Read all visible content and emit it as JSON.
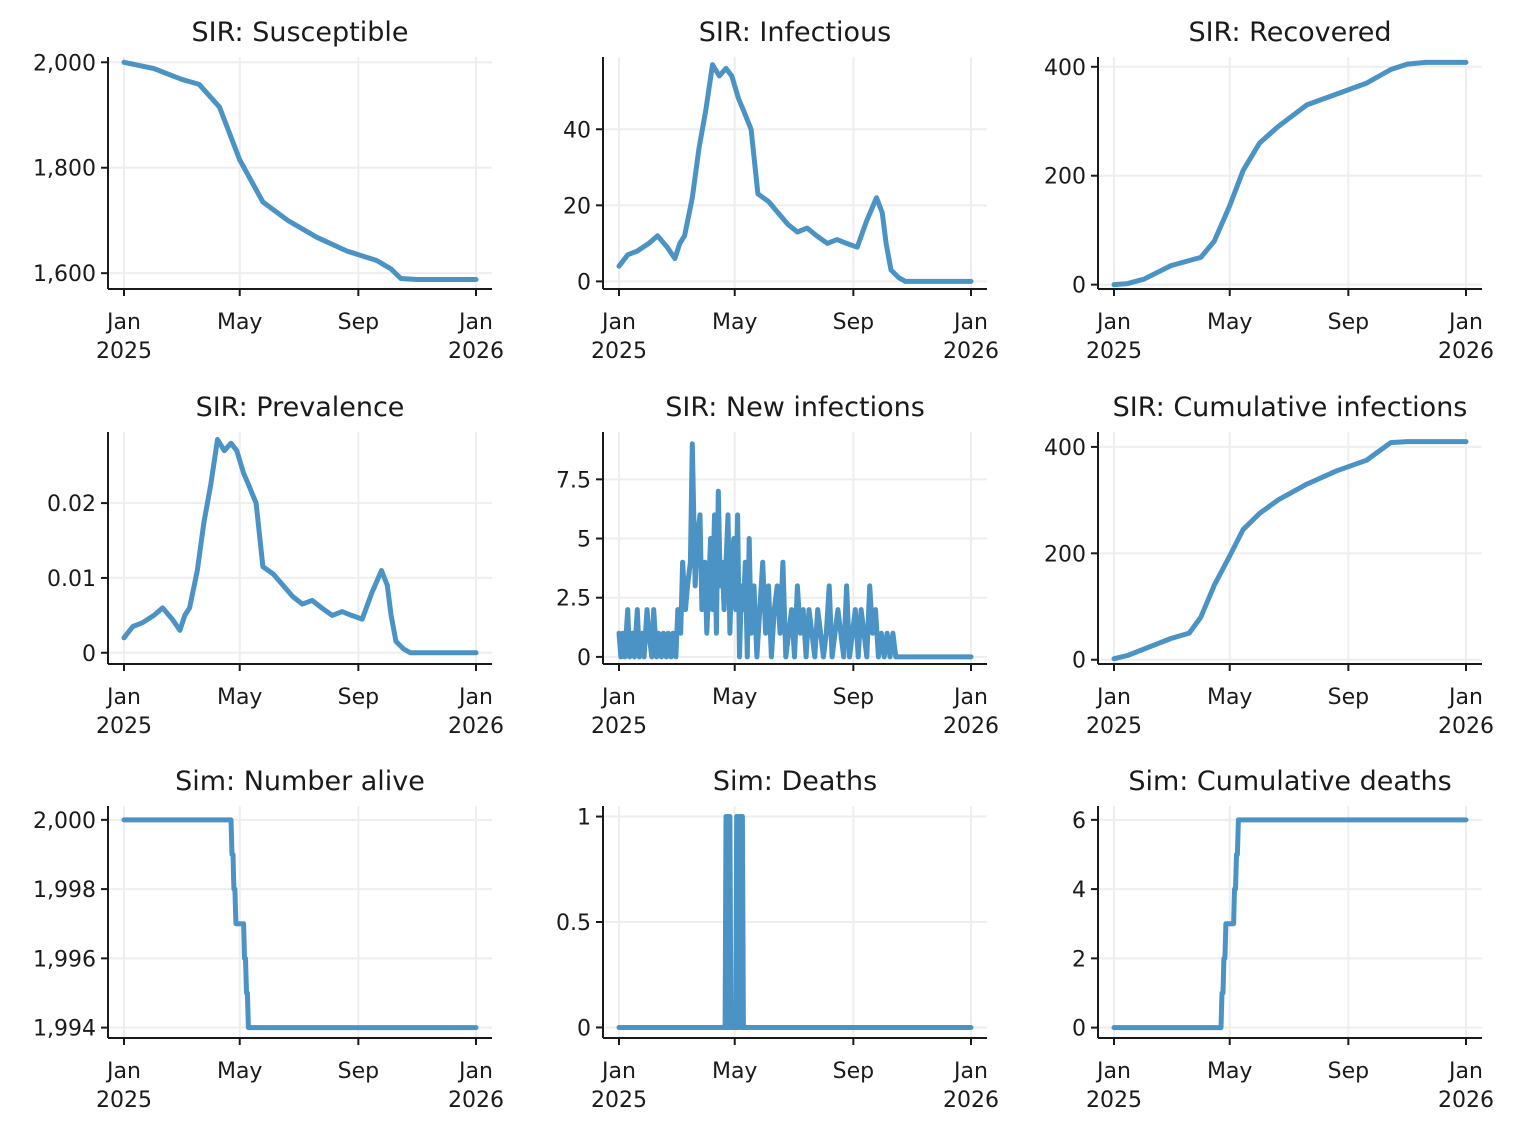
{
  "colors": {
    "series": "#4a93c4"
  },
  "chart_data": [
    {
      "type": "line",
      "title": "SIR: Susceptible",
      "ylim": [
        1570,
        2010
      ],
      "yticks": [
        1600,
        1800,
        2000
      ],
      "yticklabels": [
        "1,600",
        "1,800",
        "2,000"
      ],
      "xticks": [
        "2025-01-01",
        "2025-05-01",
        "2025-09-01",
        "2026-01-01"
      ],
      "xticklabels": [
        [
          "Jan",
          "2025"
        ],
        [
          "May",
          ""
        ],
        [
          "Sep",
          ""
        ],
        [
          "Jan",
          "2026"
        ]
      ],
      "grid": true,
      "series": [
        {
          "x": [
            "2025-01-01",
            "2025-02-01",
            "2025-03-01",
            "2025-03-20",
            "2025-04-10",
            "2025-05-01",
            "2025-05-25",
            "2025-06-20",
            "2025-07-20",
            "2025-08-20",
            "2025-09-20",
            "2025-10-05",
            "2025-10-15",
            "2025-11-01",
            "2026-01-01"
          ],
          "y": [
            2000,
            1988,
            1968,
            1958,
            1915,
            1815,
            1735,
            1700,
            1668,
            1642,
            1624,
            1608,
            1590,
            1588,
            1588
          ]
        }
      ]
    },
    {
      "type": "line",
      "title": "SIR: Infectious",
      "ylim": [
        -2,
        59
      ],
      "yticks": [
        0,
        20,
        40
      ],
      "yticklabels": [
        "0",
        "20",
        "40"
      ],
      "xticks": [
        "2025-01-01",
        "2025-05-01",
        "2025-09-01",
        "2026-01-01"
      ],
      "xticklabels": [
        [
          "Jan",
          "2025"
        ],
        [
          "May",
          ""
        ],
        [
          "Sep",
          ""
        ],
        [
          "Jan",
          "2026"
        ]
      ],
      "grid": true,
      "series": [
        {
          "x": [
            "2025-01-01",
            "2025-01-10",
            "2025-01-20",
            "2025-02-01",
            "2025-02-10",
            "2025-02-20",
            "2025-02-28",
            "2025-03-05",
            "2025-03-10",
            "2025-03-18",
            "2025-03-25",
            "2025-04-01",
            "2025-04-08",
            "2025-04-15",
            "2025-04-22",
            "2025-04-28",
            "2025-05-05",
            "2025-05-10",
            "2025-05-18",
            "2025-05-25",
            "2025-06-05",
            "2025-06-15",
            "2025-06-25",
            "2025-07-05",
            "2025-07-15",
            "2025-07-25",
            "2025-08-05",
            "2025-08-15",
            "2025-08-25",
            "2025-09-05",
            "2025-09-15",
            "2025-09-25",
            "2025-10-01",
            "2025-10-05",
            "2025-10-10",
            "2025-10-18",
            "2025-10-25",
            "2025-11-01",
            "2026-01-01"
          ],
          "y": [
            4,
            7,
            8,
            10,
            12,
            9,
            6,
            10,
            12,
            22,
            35,
            45,
            57,
            54,
            56,
            54,
            48,
            45,
            40,
            23,
            21,
            18,
            15,
            13,
            14,
            12,
            10,
            11,
            10,
            9,
            16,
            22,
            18,
            10,
            3,
            1,
            0,
            0,
            0
          ]
        }
      ]
    },
    {
      "type": "line",
      "title": "SIR: Recovered",
      "ylim": [
        -8,
        418
      ],
      "yticks": [
        0,
        200,
        400
      ],
      "yticklabels": [
        "0",
        "200",
        "400"
      ],
      "xticks": [
        "2025-01-01",
        "2025-05-01",
        "2025-09-01",
        "2026-01-01"
      ],
      "xticklabels": [
        [
          "Jan",
          "2025"
        ],
        [
          "May",
          ""
        ],
        [
          "Sep",
          ""
        ],
        [
          "Jan",
          "2026"
        ]
      ],
      "grid": true,
      "series": [
        {
          "x": [
            "2025-01-01",
            "2025-01-15",
            "2025-02-01",
            "2025-03-01",
            "2025-04-01",
            "2025-04-15",
            "2025-05-01",
            "2025-05-15",
            "2025-06-01",
            "2025-06-20",
            "2025-07-20",
            "2025-08-20",
            "2025-09-20",
            "2025-10-15",
            "2025-11-01",
            "2025-11-20",
            "2026-01-01"
          ],
          "y": [
            0,
            2,
            10,
            35,
            50,
            80,
            145,
            210,
            260,
            290,
            330,
            350,
            370,
            395,
            405,
            408,
            408
          ]
        }
      ]
    },
    {
      "type": "line",
      "title": "SIR: Prevalence",
      "ylim": [
        -0.0015,
        0.0295
      ],
      "yticks": [
        0,
        0.01,
        0.02
      ],
      "yticklabels": [
        "0",
        "0.01",
        "0.02"
      ],
      "xticks": [
        "2025-01-01",
        "2025-05-01",
        "2025-09-01",
        "2026-01-01"
      ],
      "xticklabels": [
        [
          "Jan",
          "2025"
        ],
        [
          "May",
          ""
        ],
        [
          "Sep",
          ""
        ],
        [
          "Jan",
          "2026"
        ]
      ],
      "grid": true,
      "series": [
        {
          "x": [
            "2025-01-01",
            "2025-01-10",
            "2025-01-20",
            "2025-02-01",
            "2025-02-10",
            "2025-02-20",
            "2025-02-28",
            "2025-03-05",
            "2025-03-10",
            "2025-03-18",
            "2025-03-25",
            "2025-04-01",
            "2025-04-08",
            "2025-04-15",
            "2025-04-22",
            "2025-04-28",
            "2025-05-05",
            "2025-05-10",
            "2025-05-18",
            "2025-05-25",
            "2025-06-05",
            "2025-06-15",
            "2025-06-25",
            "2025-07-05",
            "2025-07-15",
            "2025-07-25",
            "2025-08-05",
            "2025-08-15",
            "2025-08-25",
            "2025-09-05",
            "2025-09-15",
            "2025-09-25",
            "2025-10-01",
            "2025-10-05",
            "2025-10-10",
            "2025-10-18",
            "2025-10-25",
            "2025-11-01",
            "2026-01-01"
          ],
          "y": [
            0.002,
            0.0035,
            0.004,
            0.005,
            0.006,
            0.0045,
            0.003,
            0.005,
            0.006,
            0.011,
            0.0175,
            0.0225,
            0.0285,
            0.027,
            0.028,
            0.027,
            0.024,
            0.0225,
            0.02,
            0.0115,
            0.0105,
            0.009,
            0.0075,
            0.0065,
            0.007,
            0.006,
            0.005,
            0.0055,
            0.005,
            0.0045,
            0.008,
            0.011,
            0.009,
            0.005,
            0.0015,
            0.0005,
            0,
            0,
            0
          ]
        }
      ]
    },
    {
      "type": "line",
      "title": "SIR: New infections",
      "ylim": [
        -0.3,
        9.5
      ],
      "yticks": [
        0,
        2.5,
        5,
        7.5
      ],
      "yticklabels": [
        "0",
        "2.5",
        "5",
        "7.5"
      ],
      "xticks": [
        "2025-01-01",
        "2025-05-01",
        "2025-09-01",
        "2026-01-01"
      ],
      "xticklabels": [
        [
          "Jan",
          "2025"
        ],
        [
          "May",
          ""
        ],
        [
          "Sep",
          ""
        ],
        [
          "Jan",
          "2026"
        ]
      ],
      "grid": true,
      "series": [
        {
          "x": [
            "2025-01-01",
            "2025-01-03",
            "2025-01-05",
            "2025-01-07",
            "2025-01-10",
            "2025-01-12",
            "2025-01-15",
            "2025-01-17",
            "2025-01-20",
            "2025-01-22",
            "2025-01-25",
            "2025-01-27",
            "2025-01-30",
            "2025-02-01",
            "2025-02-04",
            "2025-02-06",
            "2025-02-09",
            "2025-02-11",
            "2025-02-14",
            "2025-02-16",
            "2025-02-19",
            "2025-02-21",
            "2025-02-24",
            "2025-02-26",
            "2025-03-01",
            "2025-03-03",
            "2025-03-06",
            "2025-03-08",
            "2025-03-11",
            "2025-03-13",
            "2025-03-16",
            "2025-03-18",
            "2025-03-21",
            "2025-03-23",
            "2025-03-26",
            "2025-03-28",
            "2025-03-31",
            "2025-04-02",
            "2025-04-04",
            "2025-04-06",
            "2025-04-08",
            "2025-04-10",
            "2025-04-12",
            "2025-04-14",
            "2025-04-16",
            "2025-04-18",
            "2025-04-20",
            "2025-04-22",
            "2025-04-24",
            "2025-04-26",
            "2025-04-28",
            "2025-04-30",
            "2025-05-02",
            "2025-05-04",
            "2025-05-06",
            "2025-05-08",
            "2025-05-10",
            "2025-05-12",
            "2025-05-14",
            "2025-05-16",
            "2025-05-18",
            "2025-05-21",
            "2025-05-24",
            "2025-05-27",
            "2025-05-30",
            "2025-06-02",
            "2025-06-05",
            "2025-06-08",
            "2025-06-11",
            "2025-06-14",
            "2025-06-17",
            "2025-06-20",
            "2025-06-23",
            "2025-06-26",
            "2025-06-29",
            "2025-07-02",
            "2025-07-05",
            "2025-07-08",
            "2025-07-11",
            "2025-07-14",
            "2025-07-17",
            "2025-07-20",
            "2025-07-23",
            "2025-07-26",
            "2025-07-29",
            "2025-08-01",
            "2025-08-04",
            "2025-08-07",
            "2025-08-10",
            "2025-08-13",
            "2025-08-16",
            "2025-08-19",
            "2025-08-22",
            "2025-08-25",
            "2025-08-28",
            "2025-08-31",
            "2025-09-03",
            "2025-09-06",
            "2025-09-09",
            "2025-09-12",
            "2025-09-15",
            "2025-09-18",
            "2025-09-21",
            "2025-09-24",
            "2025-09-27",
            "2025-09-30",
            "2025-10-03",
            "2025-10-06",
            "2025-10-09",
            "2025-10-12",
            "2025-10-15",
            "2025-10-18",
            "2025-10-21",
            "2026-01-01"
          ],
          "y": [
            1,
            0,
            1,
            0,
            2,
            0,
            1,
            0,
            2,
            0,
            1,
            0,
            2,
            1,
            0,
            2,
            0,
            1,
            0,
            1,
            0,
            1,
            0,
            1,
            0,
            2,
            1,
            4,
            2,
            3,
            4,
            9,
            3,
            5,
            6,
            2,
            4,
            1,
            3,
            5,
            2,
            6,
            1,
            7,
            3,
            4,
            2,
            4,
            6,
            1,
            4,
            5,
            2,
            6,
            0,
            3,
            2,
            4,
            0,
            5,
            1,
            3,
            0,
            2,
            4,
            1,
            3,
            0,
            2,
            3,
            1,
            4,
            0,
            1,
            2,
            0,
            3,
            1,
            2,
            0,
            2,
            1,
            0,
            2,
            1,
            0,
            1,
            3,
            0,
            1,
            2,
            1,
            0,
            3,
            0,
            1,
            2,
            0,
            2,
            1,
            0,
            3,
            1,
            2,
            0,
            1,
            0,
            1,
            0,
            1,
            0,
            0,
            0,
            0
          ]
        }
      ]
    },
    {
      "type": "line",
      "title": "SIR: Cumulative infections",
      "ylim": [
        -8,
        428
      ],
      "yticks": [
        0,
        200,
        400
      ],
      "yticklabels": [
        "0",
        "200",
        "400"
      ],
      "xticks": [
        "2025-01-01",
        "2025-05-01",
        "2025-09-01",
        "2026-01-01"
      ],
      "xticklabels": [
        [
          "Jan",
          "2025"
        ],
        [
          "May",
          ""
        ],
        [
          "Sep",
          ""
        ],
        [
          "Jan",
          "2026"
        ]
      ],
      "grid": true,
      "series": [
        {
          "x": [
            "2025-01-01",
            "2025-01-15",
            "2025-02-01",
            "2025-03-01",
            "2025-03-20",
            "2025-04-01",
            "2025-04-15",
            "2025-05-01",
            "2025-05-15",
            "2025-06-01",
            "2025-06-20",
            "2025-07-20",
            "2025-08-20",
            "2025-09-20",
            "2025-10-05",
            "2025-10-15",
            "2025-11-01",
            "2026-01-01"
          ],
          "y": [
            2,
            8,
            20,
            40,
            50,
            80,
            140,
            195,
            245,
            275,
            300,
            330,
            355,
            375,
            395,
            408,
            410,
            410
          ]
        }
      ]
    },
    {
      "type": "line",
      "title": "Sim: Number alive",
      "ylim": [
        1993.7,
        2000.4
      ],
      "yticks": [
        1994,
        1996,
        1998,
        2000
      ],
      "yticklabels": [
        "1,994",
        "1,996",
        "1,998",
        "2,000"
      ],
      "xticks": [
        "2025-01-01",
        "2025-05-01",
        "2025-09-01",
        "2026-01-01"
      ],
      "xticklabels": [
        [
          "Jan",
          "2025"
        ],
        [
          "May",
          ""
        ],
        [
          "Sep",
          ""
        ],
        [
          "Jan",
          "2026"
        ]
      ],
      "grid": true,
      "series": [
        {
          "x": [
            "2025-01-01",
            "2025-04-22",
            "2025-04-23",
            "2025-04-24",
            "2025-04-25",
            "2025-04-26",
            "2025-04-27",
            "2025-04-28",
            "2025-05-05",
            "2025-05-06",
            "2025-05-07",
            "2025-05-08",
            "2025-05-09",
            "2025-05-10",
            "2025-05-11",
            "2026-01-01"
          ],
          "y": [
            2000,
            2000,
            1999,
            1999,
            1998,
            1998,
            1997,
            1997,
            1997,
            1996,
            1996,
            1995,
            1995,
            1994,
            1994,
            1994
          ]
        }
      ]
    },
    {
      "type": "line",
      "title": "Sim: Deaths",
      "ylim": [
        -0.05,
        1.05
      ],
      "yticks": [
        0,
        0.5,
        1
      ],
      "yticklabels": [
        "0",
        "0.5",
        "1"
      ],
      "xticks": [
        "2025-01-01",
        "2025-05-01",
        "2025-09-01",
        "2026-01-01"
      ],
      "xticklabels": [
        [
          "Jan",
          "2025"
        ],
        [
          "May",
          ""
        ],
        [
          "Sep",
          ""
        ],
        [
          "Jan",
          "2026"
        ]
      ],
      "grid": true,
      "series": [
        {
          "x": [
            "2025-01-01",
            "2025-04-21",
            "2025-04-22",
            "2025-04-23",
            "2025-04-24",
            "2025-04-25",
            "2025-04-26",
            "2025-04-27",
            "2025-04-28",
            "2025-05-02",
            "2025-05-03",
            "2025-05-04",
            "2025-05-05",
            "2025-05-06",
            "2025-05-07",
            "2025-05-08",
            "2025-05-09",
            "2025-05-10",
            "2025-05-11",
            "2026-01-01"
          ],
          "y": [
            0,
            0,
            1,
            0,
            1,
            0,
            1,
            0,
            0,
            0,
            1,
            0,
            1,
            0,
            1,
            0,
            1,
            0,
            0,
            0
          ]
        }
      ]
    },
    {
      "type": "line",
      "title": "Sim: Cumulative deaths",
      "ylim": [
        -0.3,
        6.4
      ],
      "yticks": [
        0,
        2,
        4,
        6
      ],
      "yticklabels": [
        "0",
        "2",
        "4",
        "6"
      ],
      "xticks": [
        "2025-01-01",
        "2025-05-01",
        "2025-09-01",
        "2026-01-01"
      ],
      "xticklabels": [
        [
          "Jan",
          "2025"
        ],
        [
          "May",
          ""
        ],
        [
          "Sep",
          ""
        ],
        [
          "Jan",
          "2026"
        ]
      ],
      "grid": true,
      "series": [
        {
          "x": [
            "2025-01-01",
            "2025-04-22",
            "2025-04-23",
            "2025-04-24",
            "2025-04-25",
            "2025-04-26",
            "2025-04-27",
            "2025-04-28",
            "2025-05-05",
            "2025-05-06",
            "2025-05-07",
            "2025-05-08",
            "2025-05-09",
            "2025-05-10",
            "2025-05-11",
            "2026-01-01"
          ],
          "y": [
            0,
            0,
            1,
            1,
            2,
            2,
            3,
            3,
            3,
            4,
            4,
            5,
            5,
            6,
            6,
            6
          ]
        }
      ]
    }
  ]
}
